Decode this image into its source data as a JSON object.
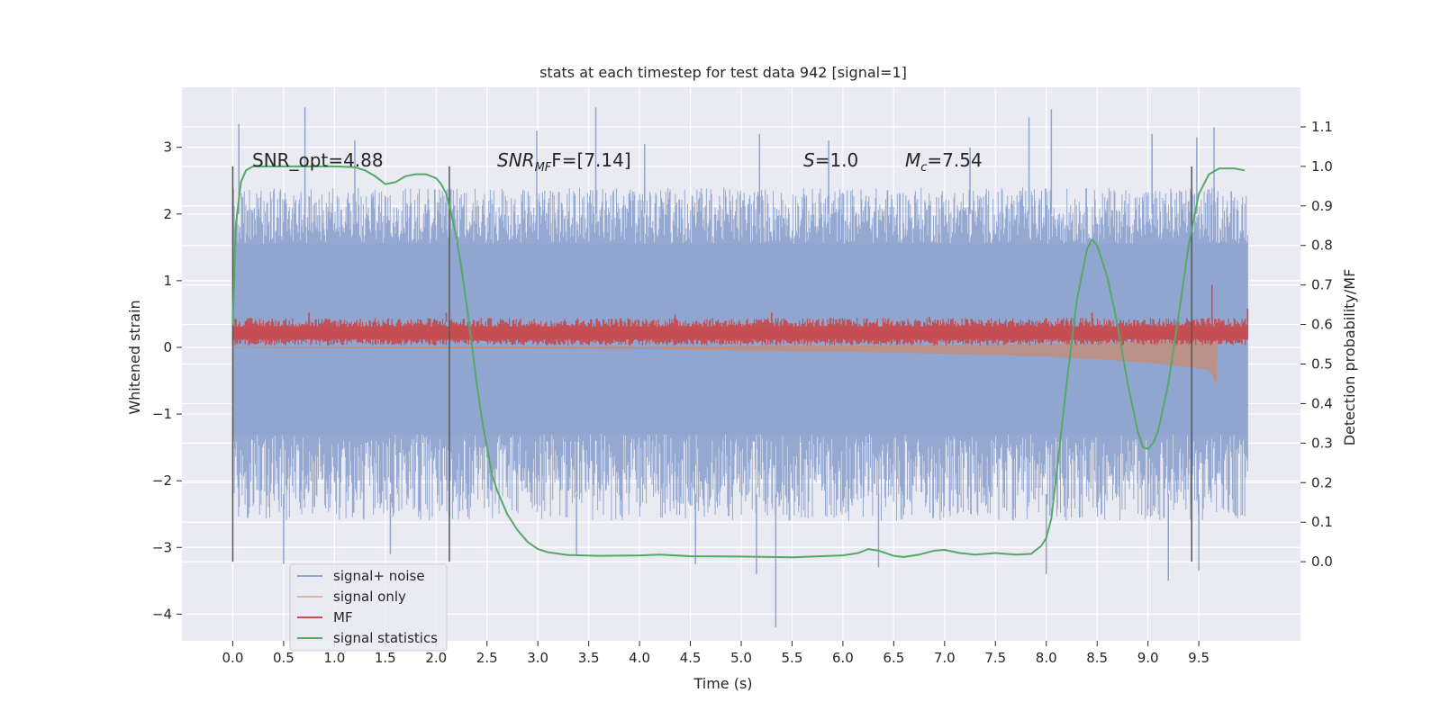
{
  "chart_data": {
    "type": "line",
    "title": "stats at each timestep for test data 942 [signal=1]",
    "xlabel": "Time (s)",
    "ylabel": "Whitened strain",
    "y2label": "Detection probability/MF",
    "xlim": [
      -0.5,
      10.5
    ],
    "ylim": [
      -4.4,
      3.9
    ],
    "y2lim": [
      -0.2,
      1.2
    ],
    "x_ticks": [
      "0.0",
      "0.5",
      "1.0",
      "1.5",
      "2.0",
      "2.5",
      "3.0",
      "3.5",
      "4.0",
      "4.5",
      "5.0",
      "5.5",
      "6.0",
      "6.5",
      "7.0",
      "7.5",
      "8.0",
      "8.5",
      "9.0",
      "9.5"
    ],
    "y_ticks": [
      "3",
      "2",
      "1",
      "0",
      "−1",
      "−2",
      "−3",
      "−4"
    ],
    "y2_ticks": [
      "1.1",
      "1.0",
      "0.9",
      "0.8",
      "0.7",
      "0.6",
      "0.5",
      "0.4",
      "0.3",
      "0.2",
      "0.1",
      "0.0"
    ],
    "grid": true,
    "legend_placement": "lower-left",
    "annotations": {
      "snr_opt": "SNR_opt=4.88",
      "snr_mf_main": "SNR",
      "snr_mf_sub": "MF",
      "snr_mf_rest": "F=[7.14]",
      "s_main": "S",
      "s_rest": "=1.0",
      "mc_main": "M",
      "mc_sub": "c",
      "mc_rest": "=7.54"
    },
    "vertical_markers": [
      0.0,
      2.13,
      9.43
    ],
    "series": [
      {
        "name": "signal+ noise",
        "color": "#8fa4cf",
        "style": "dense noise trace",
        "x_range": [
          0.0,
          9.98
        ],
        "core_band": [
          -1.3,
          1.55
        ],
        "typical_extremes": [
          -2.6,
          2.4
        ],
        "peaks": [
          [
            0.06,
            3.35
          ],
          [
            0.71,
            3.6
          ],
          [
            1.2,
            3.1
          ],
          [
            2.99,
            3.25
          ],
          [
            3.57,
            3.6
          ],
          [
            4.05,
            3.05
          ],
          [
            5.18,
            3.2
          ],
          [
            5.86,
            3.1
          ],
          [
            7.25,
            3.0
          ],
          [
            7.83,
            3.45
          ],
          [
            8.05,
            3.57
          ],
          [
            9.04,
            3.2
          ],
          [
            9.48,
            3.15
          ],
          [
            9.65,
            3.3
          ]
        ],
        "troughs": [
          [
            0.5,
            -3.25
          ],
          [
            1.55,
            -3.1
          ],
          [
            3.38,
            -3.1
          ],
          [
            4.55,
            -3.25
          ],
          [
            5.15,
            -3.4
          ],
          [
            5.34,
            -4.2
          ],
          [
            6.35,
            -3.3
          ],
          [
            8.0,
            -3.4
          ],
          [
            9.2,
            -3.5
          ],
          [
            9.5,
            -3.35
          ]
        ]
      },
      {
        "name": "signal only",
        "color": "#dd8452",
        "style": "filled chirp envelope",
        "envelope": [
          [
            0.0,
            0.0
          ],
          [
            2.0,
            0.01
          ],
          [
            4.0,
            0.02
          ],
          [
            5.0,
            0.04
          ],
          [
            6.0,
            0.06
          ],
          [
            7.0,
            0.09
          ],
          [
            8.0,
            0.13
          ],
          [
            8.5,
            0.17
          ],
          [
            9.0,
            0.22
          ],
          [
            9.3,
            0.27
          ],
          [
            9.6,
            0.33
          ],
          [
            9.65,
            0.45
          ],
          [
            9.67,
            0.55
          ],
          [
            9.68,
            0.0
          ]
        ]
      },
      {
        "name": "MF",
        "color": "#c44e52",
        "style": "noisy band on right axis",
        "x_range": [
          0.0,
          9.98
        ],
        "base_band": [
          0.555,
          0.605
        ],
        "spikes": [
          [
            0.75,
            0.63
          ],
          [
            2.1,
            0.63
          ],
          [
            4.35,
            0.625
          ],
          [
            5.3,
            0.63
          ],
          [
            6.85,
            0.62
          ],
          [
            8.45,
            0.63
          ],
          [
            9.63,
            0.7
          ],
          [
            9.98,
            0.64
          ]
        ]
      },
      {
        "name": "signal statistics",
        "color": "#55a868",
        "style": "smooth line on right axis",
        "x": [
          0.0,
          0.03,
          0.08,
          0.13,
          0.2,
          0.3,
          0.5,
          0.8,
          1.0,
          1.2,
          1.3,
          1.4,
          1.5,
          1.6,
          1.7,
          1.8,
          1.9,
          2.0,
          2.05,
          2.1,
          2.15,
          2.2,
          2.25,
          2.3,
          2.35,
          2.4,
          2.45,
          2.5,
          2.55,
          2.6,
          2.7,
          2.8,
          2.9,
          3.0,
          3.1,
          3.3,
          3.6,
          4.0,
          4.2,
          4.5,
          5.0,
          5.5,
          6.0,
          6.15,
          6.25,
          6.35,
          6.5,
          6.6,
          6.75,
          6.9,
          7.0,
          7.15,
          7.3,
          7.5,
          7.7,
          7.85,
          7.95,
          8.0,
          8.05,
          8.1,
          8.2,
          8.3,
          8.4,
          8.45,
          8.5,
          8.6,
          8.7,
          8.8,
          8.9,
          8.95,
          9.0,
          9.05,
          9.1,
          9.2,
          9.3,
          9.4,
          9.5,
          9.6,
          9.7,
          9.75,
          9.85,
          9.95
        ],
        "values": [
          0.6,
          0.85,
          0.96,
          0.99,
          1.0,
          1.0,
          1.0,
          1.0,
          1.0,
          0.998,
          0.99,
          0.975,
          0.955,
          0.96,
          0.975,
          0.98,
          0.98,
          0.97,
          0.955,
          0.93,
          0.88,
          0.82,
          0.74,
          0.65,
          0.55,
          0.45,
          0.36,
          0.29,
          0.22,
          0.18,
          0.12,
          0.08,
          0.05,
          0.032,
          0.024,
          0.017,
          0.015,
          0.016,
          0.018,
          0.014,
          0.013,
          0.011,
          0.016,
          0.022,
          0.032,
          0.028,
          0.015,
          0.012,
          0.018,
          0.028,
          0.03,
          0.022,
          0.018,
          0.022,
          0.018,
          0.02,
          0.04,
          0.06,
          0.11,
          0.22,
          0.45,
          0.66,
          0.79,
          0.815,
          0.8,
          0.72,
          0.6,
          0.45,
          0.33,
          0.29,
          0.285,
          0.3,
          0.33,
          0.45,
          0.62,
          0.8,
          0.93,
          0.98,
          0.995,
          0.995,
          0.995,
          0.99
        ]
      }
    ]
  }
}
